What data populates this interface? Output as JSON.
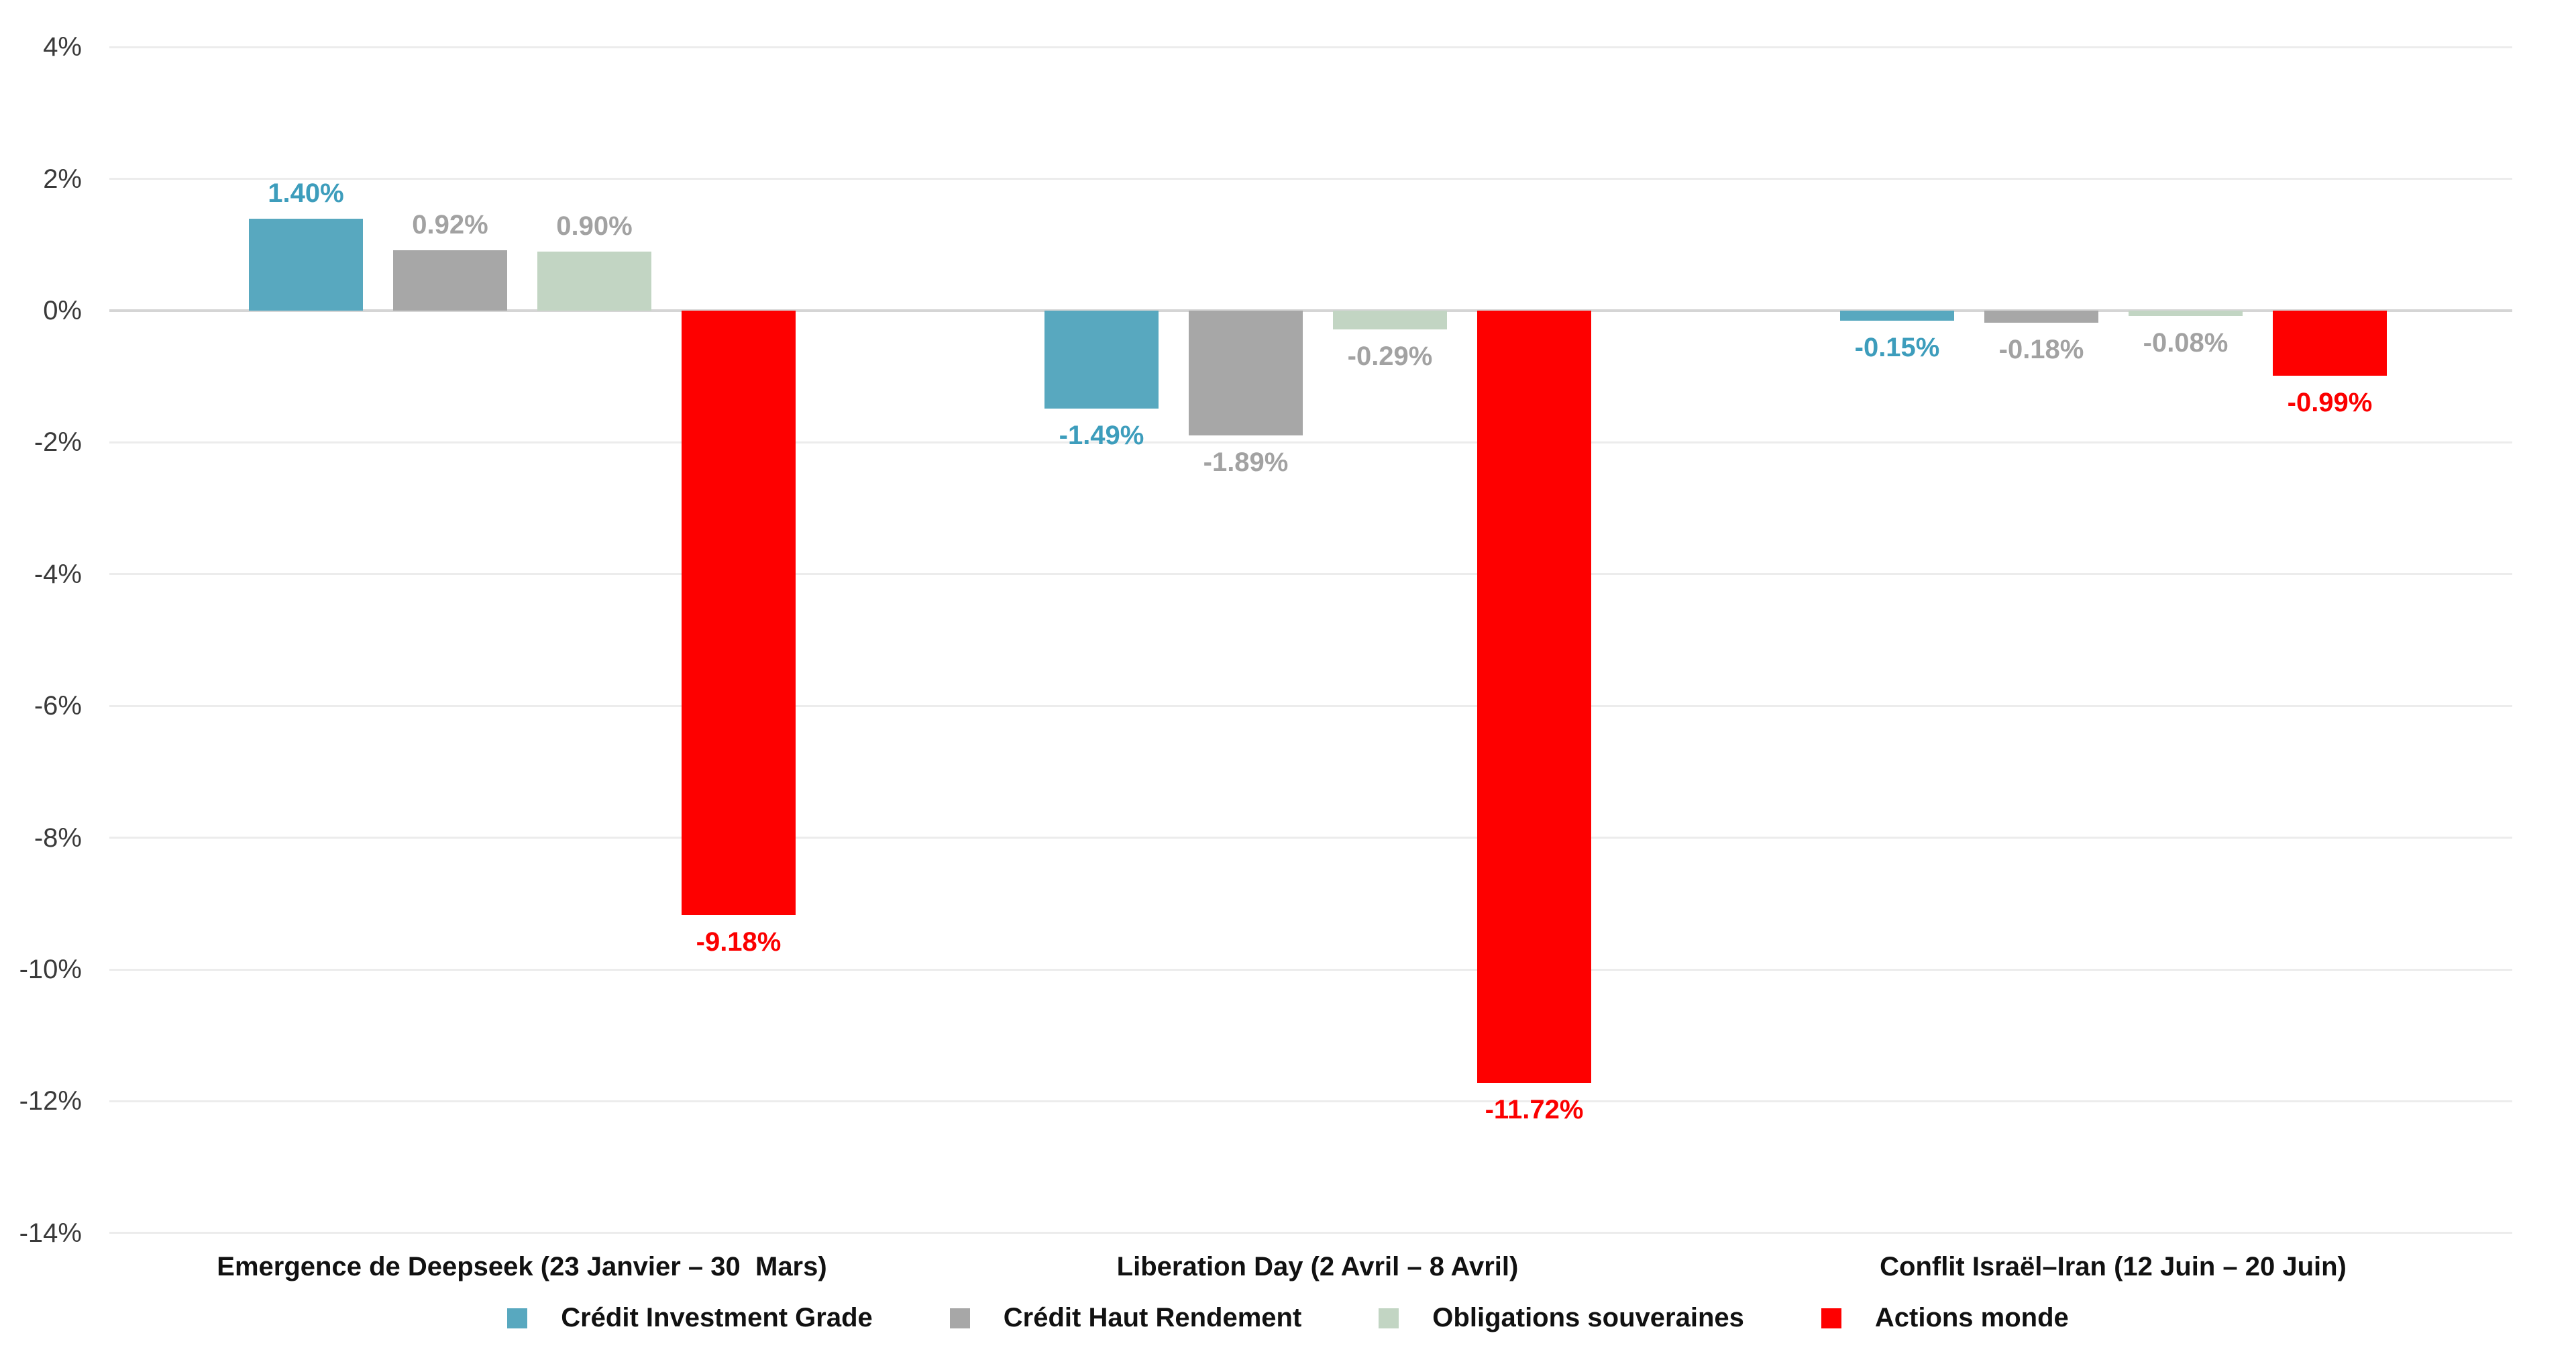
{
  "chart_data": {
    "type": "bar",
    "categories": [
      "Emergence de Deepseek (23 Janvier – 30  Mars)",
      "Liberation Day (2 Avril – 8 Avril)",
      "Conflit Israël–Iran (12 Juin – 20 Juin)"
    ],
    "series": [
      {
        "name": "Crédit Investment Grade",
        "color": "#58A8BF",
        "label_color": "#3D9DBC",
        "values": [
          1.4,
          -1.49,
          -0.15
        ]
      },
      {
        "name": "Crédit Haut Rendement",
        "color": "#A7A7A7",
        "label_color": "#A2A2A2",
        "values": [
          0.92,
          -1.89,
          -0.18
        ]
      },
      {
        "name": "Obligations souveraines",
        "color": "#C2D5C3",
        "label_color": "#A2A2A2",
        "values": [
          0.9,
          -0.29,
          -0.08
        ]
      },
      {
        "name": "Actions monde",
        "color": "#FE0000",
        "label_color": "#FB0000",
        "values": [
          -9.18,
          -11.72,
          -0.99
        ]
      }
    ],
    "value_label_format": "2-decimals-percent",
    "y_axis": {
      "min": -14,
      "max": 4,
      "step": 2,
      "tick_suffix": "%"
    },
    "grid": true,
    "legend_position": "bottom"
  },
  "colors": {
    "background": "#FFFFFF",
    "gridline": "#ECECEC",
    "zero_line": "#D5D5D5",
    "tick_text": "#3A3A3A",
    "category_text": "#111111",
    "legend_text": "#111111"
  }
}
